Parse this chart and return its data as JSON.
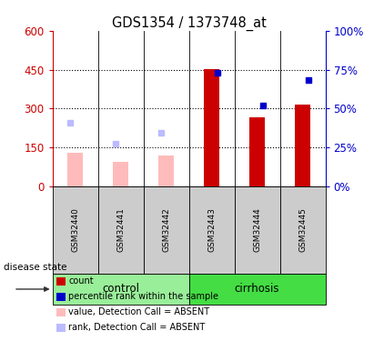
{
  "title": "GDS1354 / 1373748_at",
  "samples": [
    "GSM32440",
    "GSM32441",
    "GSM32442",
    "GSM32443",
    "GSM32444",
    "GSM32445"
  ],
  "groups": [
    "control",
    "control",
    "control",
    "cirrhosis",
    "cirrhosis",
    "cirrhosis"
  ],
  "group_labels": [
    "control",
    "cirrhosis"
  ],
  "group_ranges": [
    [
      0,
      2
    ],
    [
      3,
      5
    ]
  ],
  "group_colors": [
    "#99ee99",
    "#44dd44"
  ],
  "ylim_left": [
    0,
    600
  ],
  "ylim_right": [
    0,
    100
  ],
  "yticks_left": [
    0,
    150,
    300,
    450,
    600
  ],
  "yticks_right": [
    0,
    25,
    50,
    75,
    100
  ],
  "ytick_labels_left": [
    "0",
    "150",
    "300",
    "450",
    "600"
  ],
  "ytick_labels_right": [
    "0%",
    "25%",
    "50%",
    "75%",
    "100%"
  ],
  "count_values": [
    null,
    null,
    null,
    453,
    265,
    315
  ],
  "rank_present_values": [
    null,
    null,
    null,
    73,
    52,
    68
  ],
  "value_absent": [
    130,
    95,
    120,
    null,
    null,
    null
  ],
  "rank_absent": [
    245,
    165,
    205,
    null,
    null,
    null
  ],
  "disease_state_label": "disease state",
  "legend_items": [
    {
      "color": "#cc0000",
      "label": "count"
    },
    {
      "color": "#0000cc",
      "label": "percentile rank within the sample"
    },
    {
      "color": "#ffbbbb",
      "label": "value, Detection Call = ABSENT"
    },
    {
      "color": "#bbbbff",
      "label": "rank, Detection Call = ABSENT"
    }
  ],
  "color_red": "#cc0000",
  "color_blue": "#0000cc",
  "color_pink": "#ffbbbb",
  "color_lightblue": "#bbbbff",
  "bar_width": 0.35
}
